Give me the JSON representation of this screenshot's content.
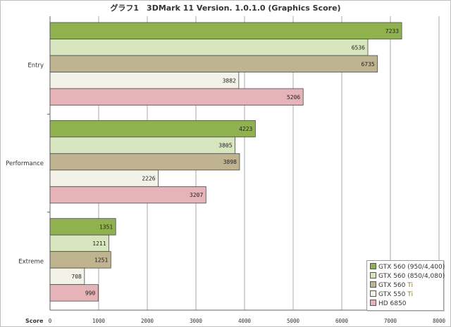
{
  "chart_data": {
    "type": "bar",
    "orientation": "horizontal",
    "title": "グラフ1　3DMark 11 Version. 1.0.1.0 (Graphics Score)",
    "xlabel": "Score",
    "ylabel": "",
    "xlim": [
      0,
      8000
    ],
    "xticks": [
      "0",
      "1000",
      "2000",
      "3000",
      "4000",
      "5000",
      "6000",
      "7000",
      "8000"
    ],
    "grid": true,
    "legend_position": "bottom-right",
    "categories": [
      "Entry",
      "Performance",
      "Extreme"
    ],
    "series": [
      {
        "name": "GTX 560 (950/4,400)",
        "color": "#8fb24e",
        "values": [
          7233,
          4223,
          1351
        ]
      },
      {
        "name": "GTX 560 (850/4,080)",
        "color": "#d8e6c0",
        "values": [
          6536,
          3805,
          1211
        ]
      },
      {
        "name": "GTX 560 Ti",
        "color": "#bfb48f",
        "values": [
          6735,
          3898,
          1251
        ]
      },
      {
        "name": "GTX 550 Ti",
        "color": "#f3f2e8",
        "values": [
          3882,
          2226,
          708
        ]
      },
      {
        "name": "HD 6850",
        "color": "#e6b3b8",
        "values": [
          5206,
          3207,
          990
        ]
      }
    ]
  },
  "legend": {
    "items": [
      {
        "main": "GTX 560 (950/4,400)",
        "suffix": ""
      },
      {
        "main": "GTX 560 (850/4,080)",
        "suffix": ""
      },
      {
        "main": "GTX 560 ",
        "suffix": "Ti"
      },
      {
        "main": "GTX 550 ",
        "suffix": "Ti"
      },
      {
        "main": "HD 6850",
        "suffix": ""
      }
    ]
  }
}
